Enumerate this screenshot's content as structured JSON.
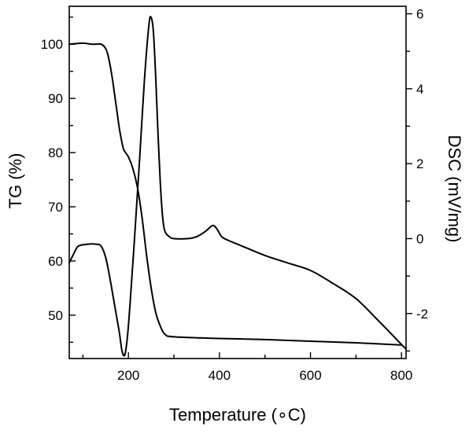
{
  "chart_data": {
    "type": "line",
    "xlabel": "Temperature (∘C)",
    "ylabel_left": "TG (%)",
    "ylabel_right": "DSC (mV/mg)",
    "xlim": [
      70,
      810
    ],
    "ylim_left": [
      42,
      107
    ],
    "ylim_right": [
      -3.2,
      6.2
    ],
    "x_ticks": [
      200,
      400,
      600,
      800
    ],
    "y_left_ticks": [
      50,
      60,
      70,
      80,
      90,
      100
    ],
    "y_right_ticks": [
      -2,
      0,
      2,
      4,
      6
    ],
    "grid": false,
    "series": [
      {
        "axis": "left",
        "color": "#000000",
        "points": [
          [
            70,
            100
          ],
          [
            100,
            100.2
          ],
          [
            120,
            100
          ],
          [
            140,
            100
          ],
          [
            150,
            99.2
          ],
          [
            155,
            98
          ],
          [
            160,
            96
          ],
          [
            165,
            93.5
          ],
          [
            170,
            90.5
          ],
          [
            175,
            87.5
          ],
          [
            180,
            84.5
          ],
          [
            185,
            82.2
          ],
          [
            190,
            80.5
          ],
          [
            200,
            79.2
          ],
          [
            210,
            77
          ],
          [
            220,
            73.5
          ],
          [
            230,
            68
          ],
          [
            240,
            61
          ],
          [
            250,
            55
          ],
          [
            260,
            50.5
          ],
          [
            270,
            48
          ],
          [
            280,
            46.5
          ],
          [
            300,
            46
          ],
          [
            400,
            45.7
          ],
          [
            500,
            45.5
          ],
          [
            600,
            45.2
          ],
          [
            700,
            44.9
          ],
          [
            800,
            44.5
          ]
        ]
      },
      {
        "axis": "right",
        "color": "#000000",
        "points": [
          [
            70,
            -0.65
          ],
          [
            80,
            -0.4
          ],
          [
            90,
            -0.2
          ],
          [
            110,
            -0.15
          ],
          [
            130,
            -0.15
          ],
          [
            140,
            -0.2
          ],
          [
            150,
            -0.5
          ],
          [
            160,
            -1.1
          ],
          [
            170,
            -1.8
          ],
          [
            180,
            -2.5
          ],
          [
            186,
            -3.0
          ],
          [
            192,
            -3.1
          ],
          [
            198,
            -2.6
          ],
          [
            205,
            -1.5
          ],
          [
            215,
            0.3
          ],
          [
            225,
            2.2
          ],
          [
            235,
            4.2
          ],
          [
            245,
            5.7
          ],
          [
            250,
            5.9
          ],
          [
            255,
            5.5
          ],
          [
            260,
            4.3
          ],
          [
            265,
            2.8
          ],
          [
            270,
            1.5
          ],
          [
            275,
            0.6
          ],
          [
            280,
            0.2
          ],
          [
            290,
            0.05
          ],
          [
            300,
            0.0
          ],
          [
            330,
            0.0
          ],
          [
            350,
            0.05
          ],
          [
            370,
            0.2
          ],
          [
            385,
            0.35
          ],
          [
            395,
            0.25
          ],
          [
            405,
            0.05
          ],
          [
            420,
            -0.05
          ],
          [
            450,
            -0.2
          ],
          [
            500,
            -0.45
          ],
          [
            550,
            -0.65
          ],
          [
            600,
            -0.85
          ],
          [
            650,
            -1.2
          ],
          [
            700,
            -1.6
          ],
          [
            750,
            -2.2
          ],
          [
            790,
            -2.7
          ],
          [
            810,
            -2.95
          ]
        ]
      }
    ]
  }
}
